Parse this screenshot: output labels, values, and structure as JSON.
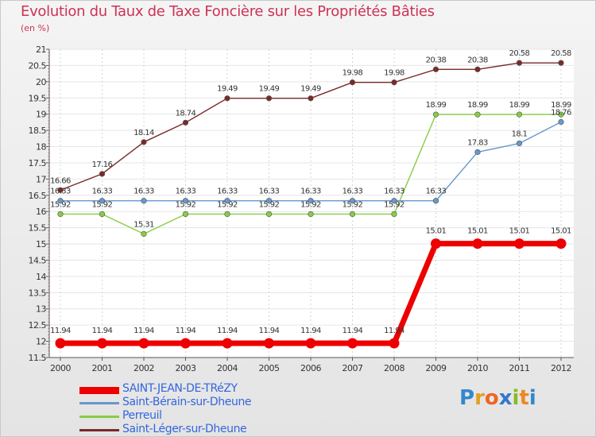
{
  "title": "Evolution du Taux de Taxe Foncière sur les Propriétés Bâties",
  "subtitle": "(en %)",
  "logo": {
    "text": "Proxiti",
    "letters": [
      "P",
      "r",
      "o",
      "x",
      "i",
      "t",
      "i"
    ],
    "colors": [
      "#3388cc",
      "#e0a020",
      "#ee6622",
      "#3377cc",
      "#88bb22",
      "#ee8822",
      "#3388cc"
    ]
  },
  "chart_data": {
    "type": "line",
    "title": "Evolution du Taux de Taxe Foncière sur les Propriétés Bâties",
    "ylabel": "(en %)",
    "xlabel": "",
    "ylim": [
      11.5,
      21
    ],
    "y_ticks": [
      11.5,
      12,
      12.5,
      13,
      13.5,
      14,
      14.5,
      15,
      15.5,
      16,
      16.5,
      17,
      17.5,
      18,
      18.5,
      19,
      19.5,
      20,
      20.5,
      21
    ],
    "x": [
      "2000",
      "2001",
      "2002",
      "2003",
      "2004",
      "2005",
      "2006",
      "2007",
      "2008",
      "2009",
      "2010",
      "2011",
      "2012"
    ],
    "series": [
      {
        "name": "Saint-Léger-sur-Dheune",
        "color": "#7a2a2a",
        "values": [
          16.66,
          17.16,
          18.14,
          18.74,
          19.49,
          19.49,
          19.49,
          19.98,
          19.98,
          20.38,
          20.38,
          20.58,
          20.58
        ],
        "labels": [
          "16.66",
          "17.16",
          "18.14",
          "18.74",
          "19.49",
          "19.49",
          "19.49",
          "19.98",
          "19.98",
          "20.38",
          "20.38",
          "20.58",
          "20.58"
        ]
      },
      {
        "name": "Perreuil",
        "color": "#88cc44",
        "values": [
          15.92,
          15.92,
          15.31,
          15.92,
          15.92,
          15.92,
          15.92,
          15.92,
          15.92,
          18.99,
          18.99,
          18.99,
          18.99
        ],
        "labels": [
          "15.92",
          "15.92",
          "15.31",
          "15.92",
          "15.92",
          "15.92",
          "15.92",
          "15.92",
          "15.92",
          "18.99",
          "18.99",
          "18.99",
          "18.99"
        ]
      },
      {
        "name": "Saint-Bérain-sur-Dheune",
        "color": "#6699cc",
        "values": [
          16.33,
          16.33,
          16.33,
          16.33,
          16.33,
          16.33,
          16.33,
          16.33,
          16.33,
          16.33,
          17.83,
          18.1,
          18.76
        ],
        "labels": [
          "16.33",
          "16.33",
          "16.33",
          "16.33",
          "16.33",
          "16.33",
          "16.33",
          "16.33",
          "16.33",
          "16.33",
          "17.83",
          "18.1",
          "18.76"
        ]
      },
      {
        "name": "SAINT-JEAN-DE-TRéZY",
        "color": "#ee0000",
        "values": [
          11.94,
          11.94,
          11.94,
          11.94,
          11.94,
          11.94,
          11.94,
          11.94,
          11.94,
          15.01,
          15.01,
          15.01,
          15.01
        ],
        "labels": [
          "11.94",
          "11.94",
          "11.94",
          "11.94",
          "11.94",
          "11.94",
          "11.94",
          "11.94",
          "11.94",
          "15.01",
          "15.01",
          "15.01",
          "15.01"
        ]
      }
    ],
    "legend": [
      "SAINT-JEAN-DE-TRéZY",
      "Saint-Bérain-sur-Dheune",
      "Perreuil",
      "Saint-Léger-sur-Dheune"
    ],
    "legend_position": "bottom-left"
  }
}
